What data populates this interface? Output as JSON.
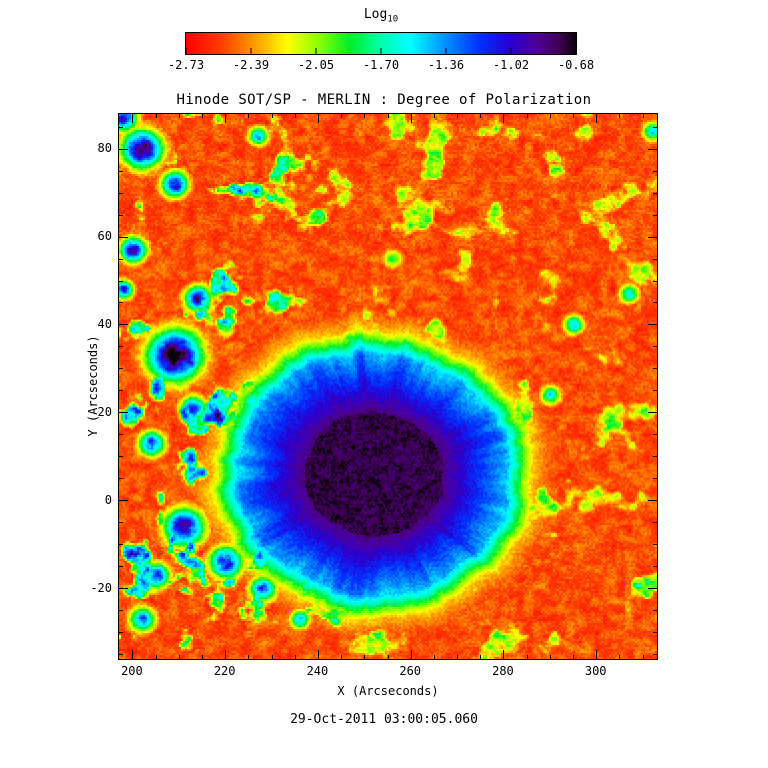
{
  "chart_data": {
    "type": "heatmap",
    "title": "Hinode SOT/SP - MERLIN : Degree of Polarization",
    "xlabel": "X (Arcseconds)",
    "ylabel": "Y (Arcseconds)",
    "timestamp": "29-Oct-2011 03:00:05.060",
    "xlim": [
      197,
      313
    ],
    "ylim": [
      -36,
      88
    ],
    "x_ticks": [
      200,
      220,
      240,
      260,
      280,
      300
    ],
    "y_ticks": [
      -20,
      0,
      20,
      40,
      60,
      80
    ],
    "minor_tick_step": 5,
    "grid": false,
    "colorbar": {
      "label_main": "Log",
      "label_sub": "10",
      "tick_labels": [
        "-2.73",
        "-2.39",
        "-2.05",
        "-1.70",
        "-1.36",
        "-1.02",
        "-0.68"
      ],
      "value_range": [
        -2.73,
        -0.68
      ],
      "orientation": "horizontal-top",
      "stops": [
        {
          "t": 0.0,
          "color": "#ff0000"
        },
        {
          "t": 0.09,
          "color": "#ff3c00"
        },
        {
          "t": 0.17,
          "color": "#ff9400"
        },
        {
          "t": 0.26,
          "color": "#ffff00"
        },
        {
          "t": 0.34,
          "color": "#8cff00"
        },
        {
          "t": 0.42,
          "color": "#00ee28"
        },
        {
          "t": 0.5,
          "color": "#00ffaa"
        },
        {
          "t": 0.575,
          "color": "#00ffff"
        },
        {
          "t": 0.66,
          "color": "#0096ff"
        },
        {
          "t": 0.75,
          "color": "#0032ff"
        },
        {
          "t": 0.83,
          "color": "#2800d2"
        },
        {
          "t": 0.9,
          "color": "#500096"
        },
        {
          "t": 0.96,
          "color": "#3c0050"
        },
        {
          "t": 1.0,
          "color": "#0a000a"
        }
      ]
    },
    "features": {
      "description": "Sunspot polarization map: quiet-sun red background (low log10 polarization ~ -2.7), yellow-green network lanes, and a large sunspot whose umbra reaches the maximum ~ -0.68 (black-purple) surrounded by a blue penumbra and a cyan-green moat; additional strong blue/purple plage patches cluster on the left side.",
      "background_level_log10": -2.7,
      "sunspot": {
        "center_x": 252,
        "center_y": 6,
        "umbra_radius": 15,
        "penumbra_radius": 29,
        "ring_radius": 35,
        "peak_log10": -0.68
      },
      "plage_patches": [
        {
          "x": 209,
          "y": 33,
          "r": 8,
          "v": 0.97
        },
        {
          "x": 214,
          "y": 46,
          "r": 4,
          "v": 0.8
        },
        {
          "x": 198,
          "y": 48,
          "r": 3,
          "v": 0.7
        },
        {
          "x": 200,
          "y": 57,
          "r": 4,
          "v": 0.82
        },
        {
          "x": 202,
          "y": 80,
          "r": 6,
          "v": 0.9
        },
        {
          "x": 198,
          "y": 87,
          "r": 4,
          "v": 0.8
        },
        {
          "x": 209,
          "y": 72,
          "r": 4,
          "v": 0.8
        },
        {
          "x": 227,
          "y": 83,
          "r": 3,
          "v": 0.6
        },
        {
          "x": 204,
          "y": 13,
          "r": 4,
          "v": 0.72
        },
        {
          "x": 213,
          "y": 21,
          "r": 4,
          "v": 0.7
        },
        {
          "x": 226,
          "y": 22,
          "r": 6,
          "v": 0.52
        },
        {
          "x": 231,
          "y": 12,
          "r": 5,
          "v": 0.5
        },
        {
          "x": 211,
          "y": -6,
          "r": 6,
          "v": 0.85
        },
        {
          "x": 220,
          "y": -14,
          "r": 5,
          "v": 0.8
        },
        {
          "x": 205,
          "y": -17,
          "r": 4,
          "v": 0.75
        },
        {
          "x": 228,
          "y": -20,
          "r": 4,
          "v": 0.7
        },
        {
          "x": 236,
          "y": -27,
          "r": 3,
          "v": 0.6
        },
        {
          "x": 202,
          "y": -27,
          "r": 4,
          "v": 0.65
        },
        {
          "x": 247,
          "y": 36,
          "r": 4,
          "v": 0.45
        },
        {
          "x": 259,
          "y": 35,
          "r": 3,
          "v": 0.45
        },
        {
          "x": 256,
          "y": 55,
          "r": 3,
          "v": 0.4
        },
        {
          "x": 290,
          "y": 24,
          "r": 3,
          "v": 0.55
        },
        {
          "x": 295,
          "y": 40,
          "r": 3,
          "v": 0.6
        },
        {
          "x": 307,
          "y": 47,
          "r": 3,
          "v": 0.55
        },
        {
          "x": 312,
          "y": 84,
          "r": 3,
          "v": 0.55
        }
      ],
      "noise_seed": 7
    }
  }
}
